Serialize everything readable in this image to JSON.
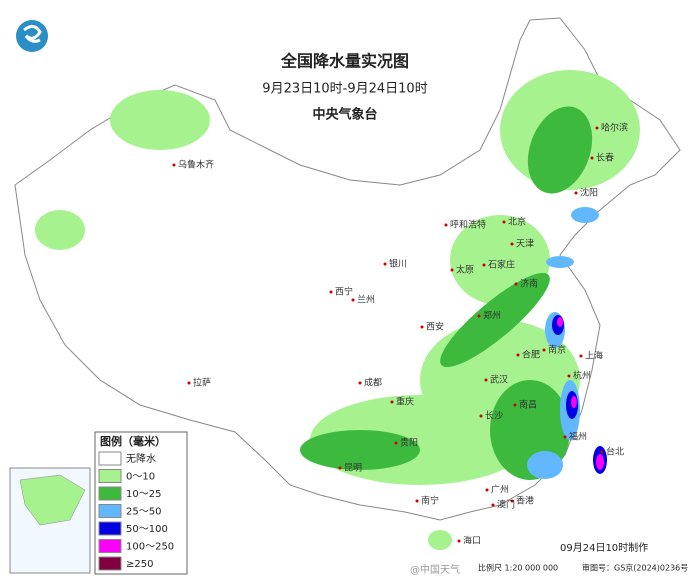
{
  "header": {
    "title": "全国降水量实况图",
    "subtitle": "9月23日10时-9月24日10时",
    "agency": "中央气象台"
  },
  "legend": {
    "title": "图例（毫米）",
    "items": [
      {
        "label": "无降水",
        "color": "#ffffff"
      },
      {
        "label": "0～10",
        "color": "#a6f28f"
      },
      {
        "label": "10～25",
        "color": "#3dba3d"
      },
      {
        "label": "25～50",
        "color": "#61b8ff"
      },
      {
        "label": "50～100",
        "color": "#0000e1"
      },
      {
        "label": "100～250",
        "color": "#fa00fa"
      },
      {
        "label": "≥250",
        "color": "#800040"
      }
    ]
  },
  "cities": [
    "哈尔滨",
    "长春",
    "沈阳",
    "北京",
    "天津",
    "呼和浩特",
    "石家庄",
    "太原",
    "银川",
    "西宁",
    "兰州",
    "济南",
    "郑州",
    "西安",
    "南京",
    "合肥",
    "上海",
    "武汉",
    "杭州",
    "成都",
    "重庆",
    "长沙",
    "南昌",
    "福州",
    "贵阳",
    "昆明",
    "台北",
    "南宁",
    "广州",
    "香港",
    "澳门",
    "海口",
    "拉萨",
    "乌鲁木齐"
  ],
  "footer": {
    "made": "09月24日10时制作",
    "scale": "比例尺 1:20 000 000",
    "approval": "审图号：GS京(2024)0236号",
    "watermark": "@中国天气"
  }
}
